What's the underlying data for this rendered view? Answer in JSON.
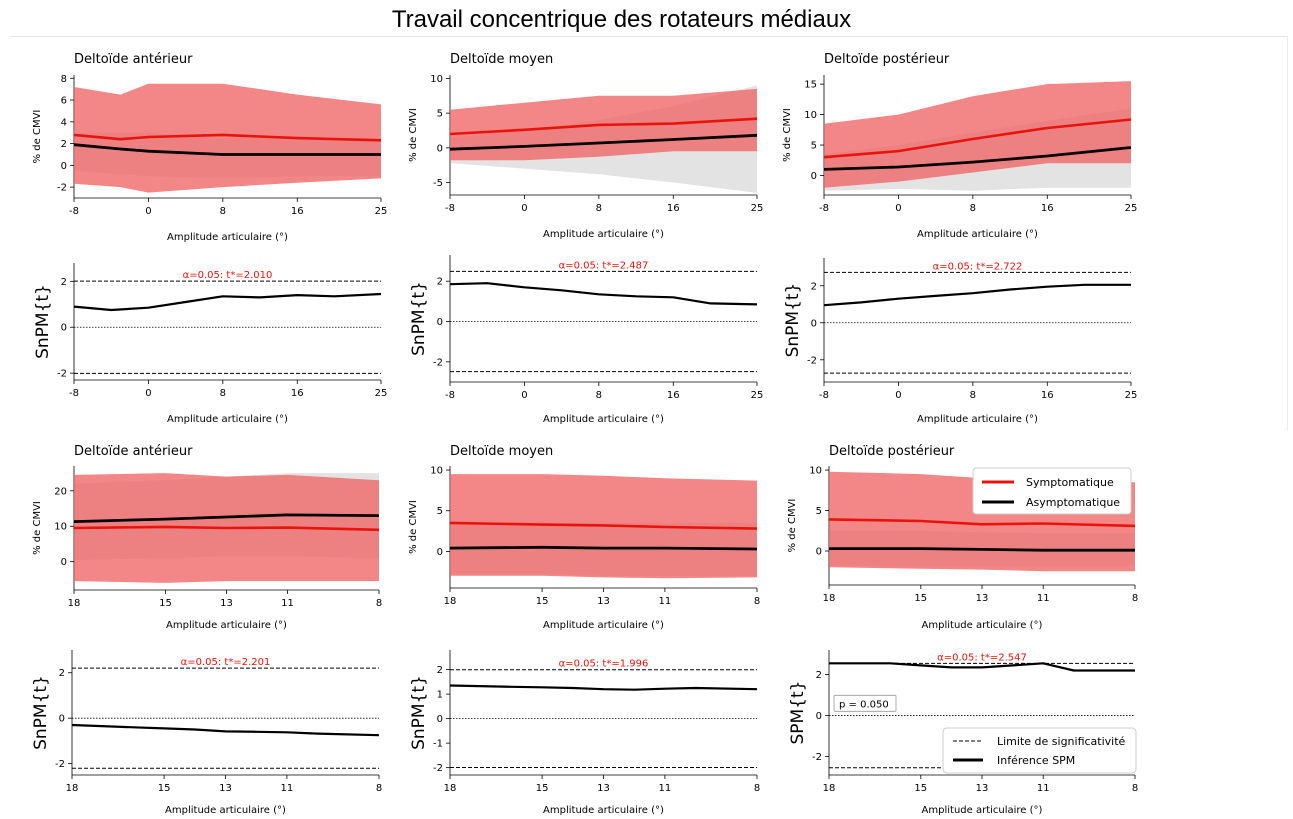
{
  "title": "Travail concentrique des rotateurs médiaux",
  "colors": {
    "symptomatique": "#e8140c",
    "asymptomatique": "#000000",
    "band_symptomatique": "#f06464",
    "band_asymptomatique": "#b0b0b0",
    "threshold_label": "#e8140c"
  },
  "legend_emg": {
    "placement": "top-right of bottom-right EMG panel",
    "items": [
      {
        "label": "Symptomatique",
        "color": "#e8140c"
      },
      {
        "label": "Asymptomatique",
        "color": "#000000"
      }
    ]
  },
  "legend_spm": {
    "placement": "bottom-right of bottom-right SPM panel",
    "items": [
      {
        "label": "Limite de significativité",
        "style": "dashed"
      },
      {
        "label": "Inférence SPM",
        "style": "solid"
      }
    ]
  },
  "chart_data": [
    {
      "type": "line",
      "panel": "emg",
      "title": "Deltoïde antérieur",
      "xlabel": "Amplitude articulaire (°)",
      "ylabel": "% de CMVI",
      "xticks": [
        "-8",
        "0",
        "8",
        "16",
        "25"
      ],
      "xlim": [
        -8,
        25
      ],
      "yticks": [
        -2,
        0,
        2,
        4,
        6,
        8
      ],
      "ylim": [
        -3.0,
        8.3
      ],
      "x": [
        -8,
        -3,
        0,
        8,
        16,
        25
      ],
      "series": [
        {
          "name": "Symptomatique",
          "values": [
            2.8,
            2.4,
            2.6,
            2.8,
            2.5,
            2.3
          ],
          "upper": [
            7.2,
            6.5,
            7.5,
            7.5,
            6.5,
            5.6
          ],
          "lower": [
            -1.7,
            -2.0,
            -2.5,
            -2.0,
            -1.6,
            -1.2
          ]
        },
        {
          "name": "Asymptomatique",
          "values": [
            1.9,
            1.5,
            1.3,
            1.0,
            1.0,
            1.0
          ],
          "upper": [
            3.0,
            3.0,
            3.0,
            2.5,
            2.5,
            2.5
          ],
          "lower": [
            -0.5,
            -0.8,
            -1.0,
            -1.2,
            -1.0,
            -1.0
          ]
        }
      ]
    },
    {
      "type": "line",
      "panel": "emg",
      "title": "Deltoïde moyen",
      "xlabel": "Amplitude articulaire (°)",
      "ylabel": "% de CMVI",
      "xticks": [
        "-8",
        "0",
        "8",
        "16",
        "25"
      ],
      "xlim": [
        -8,
        25
      ],
      "yticks": [
        -5,
        0,
        5,
        10
      ],
      "ylim": [
        -6.8,
        10.5
      ],
      "x": [
        -8,
        0,
        8,
        16,
        25
      ],
      "series": [
        {
          "name": "Symptomatique",
          "values": [
            2.0,
            2.6,
            3.3,
            3.5,
            4.2
          ],
          "upper": [
            5.5,
            6.5,
            7.5,
            7.5,
            8.5
          ],
          "lower": [
            -1.8,
            -1.8,
            -1.3,
            -0.5,
            -0.5
          ]
        },
        {
          "name": "Asymptomatique",
          "values": [
            -0.2,
            0.2,
            0.7,
            1.2,
            1.8
          ],
          "upper": [
            1.5,
            2.5,
            4.0,
            6.0,
            9.0
          ],
          "lower": [
            -2.2,
            -3.0,
            -3.8,
            -5.0,
            -6.5
          ]
        }
      ]
    },
    {
      "type": "line",
      "panel": "emg",
      "title": "Deltoïde postérieur",
      "xlabel": "Amplitude articulaire (°)",
      "ylabel": "% de CMVI",
      "xticks": [
        "-8",
        "0",
        "8",
        "16",
        "25"
      ],
      "xlim": [
        -8,
        25
      ],
      "yticks": [
        0,
        5,
        10,
        15
      ],
      "ylim": [
        -3.2,
        16.5
      ],
      "x": [
        -8,
        0,
        8,
        16,
        25
      ],
      "series": [
        {
          "name": "Symptomatique",
          "values": [
            3.0,
            4.0,
            6.0,
            7.8,
            9.2
          ],
          "upper": [
            8.5,
            10.0,
            13.0,
            15.0,
            15.5
          ],
          "lower": [
            -2.0,
            -1.0,
            0.5,
            2.0,
            2.0
          ]
        },
        {
          "name": "Asymptomatique",
          "values": [
            1.0,
            1.4,
            2.2,
            3.2,
            4.6
          ],
          "upper": [
            3.5,
            5.0,
            7.0,
            9.0,
            11.0
          ],
          "lower": [
            -2.5,
            -2.2,
            -2.5,
            -2.0,
            -2.0
          ]
        }
      ]
    },
    {
      "type": "line",
      "panel": "spm",
      "title": "",
      "xlabel": "Amplitude articulaire (°)",
      "ylabel": "SnPM{t}",
      "xticks": [
        "-8",
        "0",
        "8",
        "16",
        "25"
      ],
      "xlim": [
        -8,
        25
      ],
      "yticks": [
        -2,
        0,
        2
      ],
      "ylim": [
        -2.3,
        2.8
      ],
      "threshold": 2.01,
      "threshold_label": "α=0.05:  t*=2.010",
      "x": [
        -8,
        -4,
        0,
        4,
        8,
        12,
        16,
        20,
        25
      ],
      "series": [
        {
          "name": "Inférence SPM",
          "values": [
            0.9,
            0.75,
            0.85,
            1.1,
            1.35,
            1.3,
            1.4,
            1.35,
            1.45
          ]
        }
      ]
    },
    {
      "type": "line",
      "panel": "spm",
      "title": "",
      "xlabel": "Amplitude articulaire (°)",
      "ylabel": "SnPM{t}",
      "xticks": [
        "-8",
        "0",
        "8",
        "16",
        "25"
      ],
      "xlim": [
        -8,
        25
      ],
      "yticks": [
        -2,
        0,
        2
      ],
      "ylim": [
        -3.0,
        3.3
      ],
      "threshold": 2.487,
      "threshold_label": "α=0.05:  t*=2.487",
      "x": [
        -8,
        -4,
        0,
        4,
        8,
        12,
        16,
        20,
        25
      ],
      "series": [
        {
          "name": "Inférence SPM",
          "values": [
            1.85,
            1.9,
            1.7,
            1.55,
            1.35,
            1.25,
            1.2,
            0.9,
            0.85
          ]
        }
      ]
    },
    {
      "type": "line",
      "panel": "spm",
      "title": "",
      "xlabel": "Amplitude articulaire (°)",
      "ylabel": "SnPM{t}",
      "xticks": [
        "-8",
        "0",
        "8",
        "16",
        "25"
      ],
      "xlim": [
        -8,
        25
      ],
      "yticks": [
        -2,
        0,
        2
      ],
      "ylim": [
        -3.2,
        3.5
      ],
      "threshold": 2.722,
      "threshold_label": "α=0.05:  t*=2.722",
      "x": [
        -8,
        -4,
        0,
        4,
        8,
        12,
        16,
        20,
        25
      ],
      "series": [
        {
          "name": "Inférence SPM",
          "values": [
            0.95,
            1.1,
            1.3,
            1.45,
            1.6,
            1.8,
            1.95,
            2.05,
            2.05
          ]
        }
      ]
    },
    {
      "type": "line",
      "panel": "emg",
      "title": "Deltoïde antérieur",
      "xlabel": "Amplitude articulaire (°)",
      "ylabel": "% de CMVI",
      "xticks": [
        "18",
        "15",
        "13",
        "11",
        "8"
      ],
      "xlim": [
        18,
        8
      ],
      "yticks": [
        0,
        10,
        20
      ],
      "ylim": [
        -8,
        27
      ],
      "x": [
        18,
        15,
        13,
        11,
        8
      ],
      "series": [
        {
          "name": "Symptomatique",
          "values": [
            9.5,
            9.8,
            9.5,
            9.6,
            9.0
          ],
          "upper": [
            24.5,
            25.0,
            24.0,
            24.5,
            23.0
          ],
          "lower": [
            -5.5,
            -6.0,
            -5.5,
            -5.5,
            -5.5
          ]
        },
        {
          "name": "Asymptomatique",
          "values": [
            11.3,
            12.0,
            12.6,
            13.2,
            13.0
          ],
          "upper": [
            22.0,
            23.0,
            24.0,
            25.0,
            25.0
          ],
          "lower": [
            0.5,
            1.0,
            1.5,
            1.5,
            1.0
          ]
        }
      ]
    },
    {
      "type": "line",
      "panel": "emg",
      "title": "Deltoïde moyen",
      "xlabel": "Amplitude articulaire (°)",
      "ylabel": "% de CMVI",
      "xticks": [
        "18",
        "15",
        "13",
        "11",
        "8"
      ],
      "xlim": [
        18,
        8
      ],
      "yticks": [
        0,
        5,
        10
      ],
      "ylim": [
        -4.5,
        10.5
      ],
      "x": [
        18,
        15,
        13,
        11,
        8
      ],
      "series": [
        {
          "name": "Symptomatique",
          "values": [
            3.5,
            3.3,
            3.2,
            3.0,
            2.8
          ],
          "upper": [
            9.5,
            9.5,
            9.3,
            9.0,
            8.7
          ],
          "lower": [
            -3.0,
            -3.0,
            -3.2,
            -3.3,
            -3.2
          ]
        },
        {
          "name": "Asymptomatique",
          "values": [
            0.4,
            0.5,
            0.4,
            0.4,
            0.3
          ],
          "upper": [
            3.5,
            3.5,
            3.5,
            3.5,
            3.5
          ],
          "lower": [
            -2.8,
            -2.8,
            -3.0,
            -3.0,
            -3.0
          ]
        }
      ]
    },
    {
      "type": "line",
      "panel": "emg",
      "title": "Deltoïde postérieur",
      "xlabel": "Amplitude articulaire (°)",
      "ylabel": "% de CMVI",
      "xticks": [
        "18",
        "15",
        "13",
        "11",
        "8"
      ],
      "xlim": [
        18,
        8
      ],
      "yticks": [
        0,
        5,
        10
      ],
      "ylim": [
        -4.2,
        10.5
      ],
      "x": [
        18,
        15,
        13,
        11,
        8
      ],
      "series": [
        {
          "name": "Symptomatique",
          "values": [
            3.9,
            3.7,
            3.3,
            3.4,
            3.1
          ],
          "upper": [
            9.8,
            9.5,
            9.0,
            8.5,
            8.5
          ],
          "lower": [
            -2.0,
            -2.2,
            -2.3,
            -2.5,
            -2.5
          ]
        },
        {
          "name": "Asymptomatique",
          "values": [
            0.3,
            0.3,
            0.2,
            0.1,
            0.1
          ],
          "upper": [
            2.5,
            2.5,
            2.3,
            2.2,
            2.2
          ],
          "lower": [
            -1.8,
            -1.8,
            -1.8,
            -1.8,
            -1.8
          ]
        }
      ]
    },
    {
      "type": "line",
      "panel": "spm",
      "title": "",
      "xlabel": "Amplitude articulaire (°)",
      "ylabel": "SnPM{t}",
      "xticks": [
        "18",
        "15",
        "13",
        "11",
        "8"
      ],
      "xlim": [
        18,
        8
      ],
      "yticks": [
        -2,
        0,
        2
      ],
      "ylim": [
        -2.5,
        3.0
      ],
      "threshold": 2.201,
      "threshold_label": "α=0.05:  t*=2.201",
      "x": [
        18,
        16,
        15,
        14,
        13,
        12,
        11,
        10,
        8
      ],
      "series": [
        {
          "name": "Inférence SPM",
          "values": [
            -0.3,
            -0.4,
            -0.45,
            -0.5,
            -0.58,
            -0.6,
            -0.62,
            -0.68,
            -0.75
          ]
        }
      ]
    },
    {
      "type": "line",
      "panel": "spm",
      "title": "",
      "xlabel": "Amplitude articulaire (°)",
      "ylabel": "SnPM{t}",
      "xticks": [
        "18",
        "15",
        "13",
        "11",
        "8"
      ],
      "xlim": [
        18,
        8
      ],
      "yticks": [
        -2,
        -1,
        0,
        1,
        2
      ],
      "ylim": [
        -2.3,
        2.8
      ],
      "threshold": 1.996,
      "threshold_label": "α=0.05:  t*=1.996",
      "x": [
        18,
        16,
        15,
        14,
        13,
        12,
        11,
        10,
        8
      ],
      "series": [
        {
          "name": "Inférence SPM",
          "values": [
            1.35,
            1.3,
            1.28,
            1.25,
            1.2,
            1.18,
            1.22,
            1.25,
            1.2
          ]
        }
      ]
    },
    {
      "type": "line",
      "panel": "spm",
      "title": "",
      "xlabel": "Amplitude articulaire (°)",
      "ylabel": "SPM{t}",
      "xticks": [
        "18",
        "15",
        "13",
        "11",
        "8"
      ],
      "xlim": [
        18,
        8
      ],
      "yticks": [
        -2,
        0,
        2
      ],
      "ylim": [
        -2.9,
        3.2
      ],
      "threshold": 2.547,
      "threshold_label": "α=0.05:  t*=2.547",
      "p_value_label": "p = 0.050",
      "x": [
        18,
        16,
        15,
        14,
        13,
        12,
        11,
        10,
        8
      ],
      "series": [
        {
          "name": "Inférence SPM",
          "values": [
            2.55,
            2.55,
            2.45,
            2.35,
            2.35,
            2.45,
            2.55,
            2.2,
            2.2
          ]
        }
      ]
    }
  ]
}
